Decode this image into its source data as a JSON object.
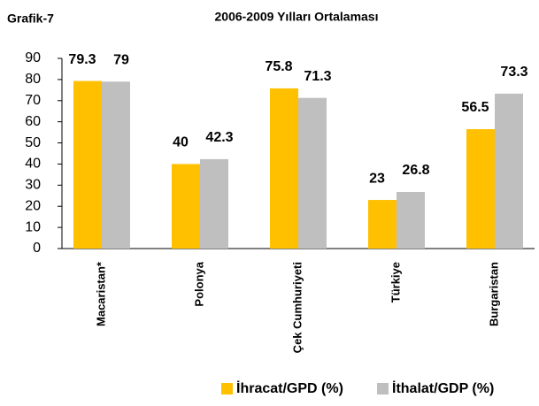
{
  "chart_data": {
    "type": "bar",
    "label": "Grafik-7",
    "title": "2006-2009 Yılları Ortalaması",
    "categories": [
      "Macaristan*",
      "Polonya",
      "Çek Cumhuriyeti",
      "Türkiye",
      "Burgaristan"
    ],
    "series": [
      {
        "name": "İhracat/GPD (%)",
        "color": "#ffc000",
        "values": [
          79.3,
          40,
          75.8,
          23,
          56.5
        ]
      },
      {
        "name": "İthalat/GDP (%)",
        "color": "#bfbfbf",
        "values": [
          79,
          42.3,
          71.3,
          26.8,
          73.3
        ]
      }
    ],
    "ylim": [
      0,
      90
    ],
    "yticks": [
      0,
      10,
      20,
      30,
      40,
      50,
      60,
      70,
      80,
      90
    ],
    "grid": false,
    "legend": "bottom"
  }
}
